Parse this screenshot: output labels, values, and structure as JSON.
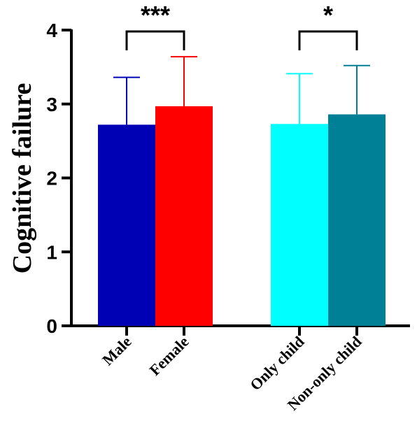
{
  "chart_data": {
    "type": "bar",
    "ylabel": "Cognitive failure",
    "xlabel": "",
    "ylim": [
      0,
      4
    ],
    "yticks": [
      "0",
      "1",
      "2",
      "3",
      "4"
    ],
    "categories": [
      "Male",
      "Female",
      "Only child",
      "Non-only child"
    ],
    "values": [
      2.72,
      2.97,
      2.73,
      2.86
    ],
    "error_upper": [
      0.64,
      0.67,
      0.68,
      0.66
    ],
    "colors": [
      "#0000B4",
      "#FF0000",
      "#00FFFF",
      "#008096"
    ],
    "significance": [
      {
        "between": [
          0,
          1
        ],
        "label": "***"
      },
      {
        "between": [
          2,
          3
        ],
        "label": "*"
      }
    ],
    "grid": false,
    "legend": "none"
  }
}
